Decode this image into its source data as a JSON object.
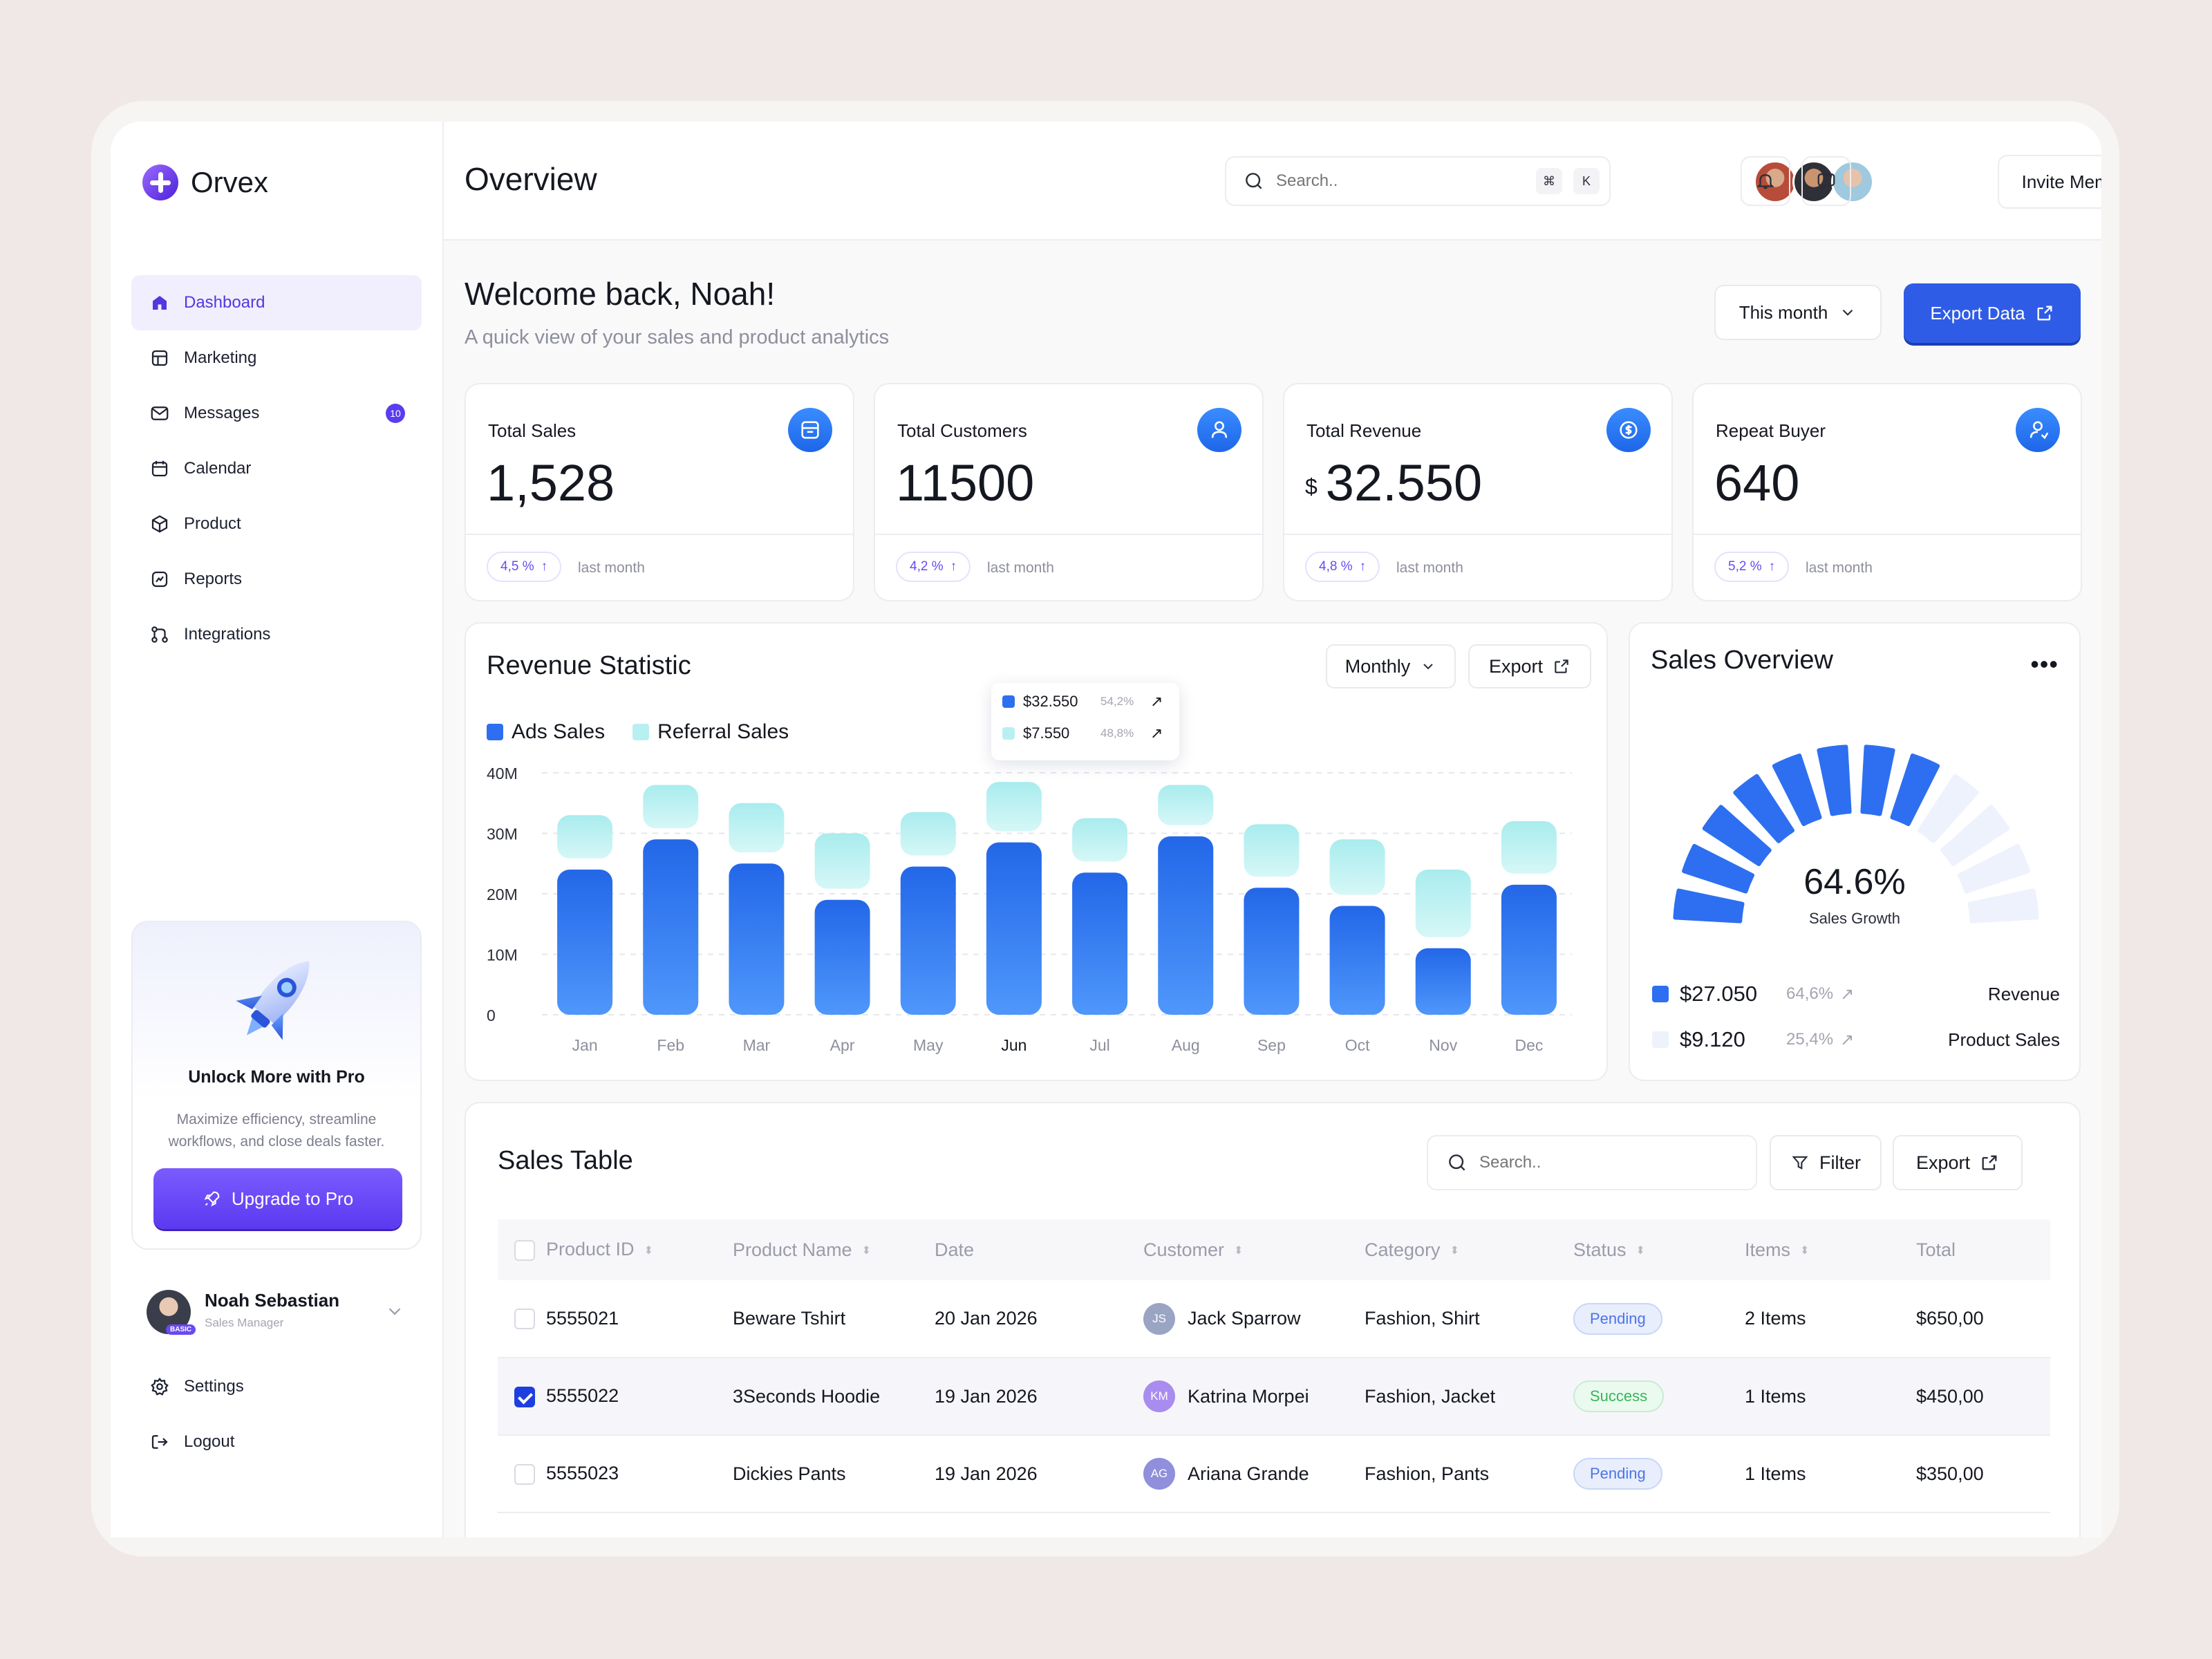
{
  "app": {
    "name": "Orvex"
  },
  "sidebar": {
    "items": [
      {
        "label": "Dashboard",
        "icon": "home-icon",
        "active": true
      },
      {
        "label": "Marketing",
        "icon": "store-icon"
      },
      {
        "label": "Messages",
        "icon": "mail-icon",
        "badge": "10"
      },
      {
        "label": "Calendar",
        "icon": "calendar-icon"
      },
      {
        "label": "Product",
        "icon": "box-icon"
      },
      {
        "label": "Reports",
        "icon": "chart-icon"
      },
      {
        "label": "Integrations",
        "icon": "integrations-icon"
      }
    ],
    "promo": {
      "title": "Unlock More with Pro",
      "desc": "Maximize efficiency, streamline workflows, and close deals faster.",
      "button": "Upgrade to Pro"
    },
    "profile": {
      "name": "Noah Sebastian",
      "role": "Sales Manager",
      "tag": "BASIC"
    },
    "bottom": [
      {
        "label": "Settings",
        "icon": "gear-icon"
      },
      {
        "label": "Logout",
        "icon": "logout-icon"
      }
    ]
  },
  "header": {
    "title": "Overview",
    "search_placeholder": "Search..",
    "kbd1": "⌘",
    "kbd2": "K",
    "invite": "Invite Member"
  },
  "welcome": {
    "title": "Welcome back, Noah!",
    "subtitle": "A quick view of your sales and product analytics",
    "period": "This month",
    "export": "Export Data"
  },
  "stats": [
    {
      "label": "Total Sales",
      "value": "1,528",
      "currency": "",
      "change": "4,5 %",
      "since": "last month"
    },
    {
      "label": "Total Customers",
      "value": "11500",
      "currency": "",
      "change": "4,2 %",
      "since": "last month"
    },
    {
      "label": "Total Revenue",
      "value": "32.550",
      "currency": "$",
      "change": "4,8 %",
      "since": "last month"
    },
    {
      "label": "Repeat Buyer",
      "value": "640",
      "currency": "",
      "change": "5,2 %",
      "since": "last month"
    }
  ],
  "revenue": {
    "title": "Revenue Statistic",
    "period": "Monthly",
    "export": "Export",
    "tooltip": [
      {
        "value": "$32.550",
        "pct": "54,2%"
      },
      {
        "value": "$7.550",
        "pct": "48,8%"
      }
    ],
    "colors": {
      "ads": "#2d6ff0",
      "referral": "#b8f0f2"
    }
  },
  "chart_data": {
    "type": "bar",
    "stacked": true,
    "categories": [
      "Jan",
      "Feb",
      "Mar",
      "Apr",
      "May",
      "Jun",
      "Jul",
      "Aug",
      "Sep",
      "Oct",
      "Nov",
      "Dec"
    ],
    "highlight": "Jun",
    "series": [
      {
        "name": "Ads Sales",
        "values": [
          24,
          29,
          25,
          19,
          24.5,
          28.5,
          23.5,
          29.5,
          21,
          18,
          11,
          21.5
        ]
      },
      {
        "name": "Referral Sales",
        "values": [
          9,
          9,
          10,
          11,
          9,
          10,
          9,
          8.5,
          10.5,
          11,
          13,
          10.5
        ]
      }
    ],
    "yticks": [
      "0",
      "10M",
      "20M",
      "30M",
      "40M"
    ],
    "ylim": [
      0,
      40
    ],
    "legend": "top-left",
    "grid": true
  },
  "overview": {
    "title": "Sales Overview",
    "pct": "64.6%",
    "label": "Sales Growth",
    "filled_fraction": 0.646,
    "rows": [
      {
        "value": "$27.050",
        "pct": "64,6%",
        "name": "Revenue",
        "color": "#2d6ff0"
      },
      {
        "value": "$9.120",
        "pct": "25,4%",
        "name": "Product Sales",
        "color": "#eef2fc"
      }
    ]
  },
  "table": {
    "title": "Sales Table",
    "search_placeholder": "Search..",
    "filter": "Filter",
    "export": "Export",
    "columns": [
      "Product ID",
      "Product Name",
      "Date",
      "Customer",
      "Category",
      "Status",
      "Items",
      "Total"
    ],
    "rows": [
      {
        "id": "5555021",
        "name": "Beware Tshirt",
        "date": "20 Jan 2026",
        "initials": "JS",
        "customer": "Jack Sparrow",
        "category": "Fashion, Shirt",
        "status": "Pending",
        "items": "2 Items",
        "total": "$650,00",
        "checked": false
      },
      {
        "id": "5555022",
        "name": "3Seconds Hoodie",
        "date": "19 Jan 2026",
        "initials": "KM",
        "customer": "Katrina Morpei",
        "category": "Fashion, Jacket",
        "status": "Success",
        "items": "1 Items",
        "total": "$450,00",
        "checked": true
      },
      {
        "id": "5555023",
        "name": "Dickies Pants",
        "date": "19 Jan 2026",
        "initials": "AG",
        "customer": "Ariana Grande",
        "category": "Fashion, Pants",
        "status": "Pending",
        "items": "1 Items",
        "total": "$350,00",
        "checked": false
      }
    ]
  }
}
